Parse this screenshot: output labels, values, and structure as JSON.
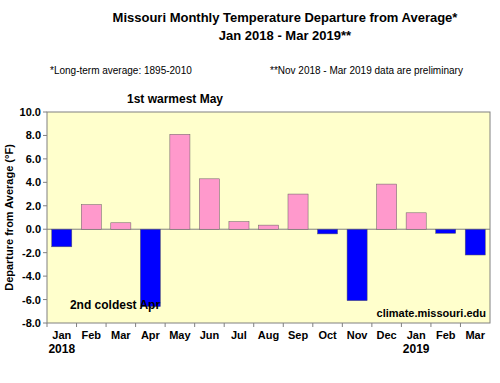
{
  "chart_data": {
    "type": "bar",
    "title": "Missouri Monthly Temperature Departure from Average*",
    "subtitle": "Jan 2018 - Mar 2019**",
    "y_label": "Departure from Average (°F)",
    "notes": [
      "*Long-term average: 1895-2010",
      "**Nov 2018 - Mar 2019 data are preliminary"
    ],
    "annotations": [
      "1st warmest May",
      "2nd coldest Apr"
    ],
    "source": "climate.missouri.edu",
    "categories": [
      "Jan",
      "Feb",
      "Mar",
      "Apr",
      "May",
      "Jun",
      "Jul",
      "Aug",
      "Sep",
      "Oct",
      "Nov",
      "Dec",
      "Jan",
      "Feb",
      "Mar"
    ],
    "category_groups": [
      "2018",
      null,
      null,
      null,
      null,
      null,
      null,
      null,
      null,
      null,
      null,
      null,
      "2019",
      null,
      null
    ],
    "values": [
      -1.5,
      2.1,
      0.55,
      -6.6,
      8.1,
      4.3,
      0.65,
      0.35,
      3.0,
      -0.4,
      -6.1,
      3.85,
      1.4,
      -0.35,
      -2.2
    ],
    "colors": [
      "#0000ff",
      "#ff99cc",
      "#ff99cc",
      "#0000ff",
      "#ff99cc",
      "#ff99cc",
      "#ff99cc",
      "#ff99cc",
      "#ff99cc",
      "#0000ff",
      "#0000ff",
      "#ff99cc",
      "#ff99cc",
      "#0000ff",
      "#0000ff"
    ],
    "ylim": [
      -8,
      10
    ],
    "yticks": [
      {
        "value": -8,
        "label": "-8.0"
      },
      {
        "value": -6,
        "label": "-6.0"
      },
      {
        "value": -4,
        "label": "-4.0"
      },
      {
        "value": -2,
        "label": "-2.0"
      },
      {
        "value": 0,
        "label": "0.0"
      },
      {
        "value": 2,
        "label": "2.0"
      },
      {
        "value": 4,
        "label": "4.0"
      },
      {
        "value": 6,
        "label": "6.0"
      },
      {
        "value": 8,
        "label": "8.0"
      },
      {
        "value": 10,
        "label": "10.0"
      }
    ],
    "grid": false
  }
}
